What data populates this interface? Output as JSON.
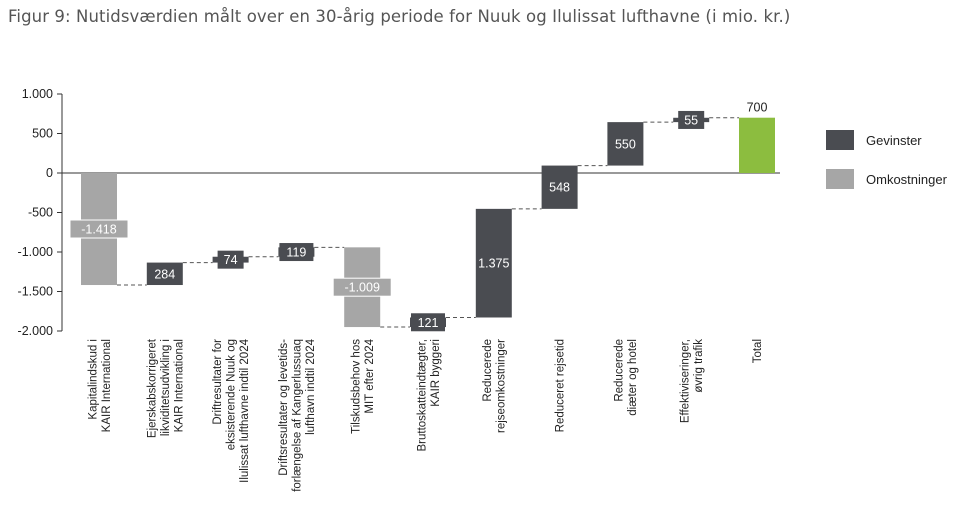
{
  "title": "Figur 9: Nutidsværdien målt over en 30-årig periode for Nuuk og Ilulissat lufthavne (i mio. kr.)",
  "chart_data": {
    "type": "waterfall",
    "title": "Figur 9: Nutidsværdien målt over en 30-årig periode for Nuuk og Ilulissat lufthavne (i mio. kr.)",
    "ylim": [
      -2000,
      1000
    ],
    "yticks": [
      1000,
      500,
      0,
      -500,
      -1000,
      -1500,
      -2000
    ],
    "ytick_labels": [
      "1.000",
      "500",
      "0",
      "-500",
      "-1.000",
      "-1.500",
      "-2.000"
    ],
    "grid": false,
    "legend_position": "right",
    "colors": {
      "Gevinster": "#4a4c51",
      "Omkostninger": "#a6a6a6",
      "Total": "#8cbd3f"
    },
    "legend": [
      {
        "name": "Gevinster",
        "color": "#4a4c51"
      },
      {
        "name": "Omkostninger",
        "color": "#a6a6a6"
      }
    ],
    "categories": [
      [
        "Kapitalindskud i",
        "KAIR International"
      ],
      [
        "Ejerskabskorrigeret",
        "likviditetsudvikling i",
        "KAIR International"
      ],
      [
        "Driftresultater for",
        "eksisterende Nuuk og",
        "Ilulissat lufthavne indtil 2024"
      ],
      [
        "Driftsresultater og levetids-",
        "forlængelse af Kangerlussuaq",
        "lufthavn indtil 2024"
      ],
      [
        "Tilskudsbehov hos",
        "MIT efter 2024"
      ],
      [
        "Bruttoskatteindtægter,",
        "KAIR byggeri"
      ],
      [
        "Reducerede",
        "rejseomkostninger"
      ],
      [
        "Reduceret rejsetid"
      ],
      [
        "Reducerede",
        "diæter og hotel"
      ],
      [
        "Effektiviseringer,",
        "øvrig trafik"
      ],
      [
        "Total"
      ]
    ],
    "values": [
      -1418,
      284,
      74,
      119,
      -1009,
      121,
      1375,
      548,
      550,
      55,
      700
    ],
    "data_labels": [
      "-1.418",
      "284",
      "74",
      "119",
      "-1.009",
      "121",
      "1.375",
      "548",
      "550",
      "55",
      "700"
    ],
    "kinds": [
      "Omkostninger",
      "Gevinster",
      "Gevinster",
      "Gevinster",
      "Omkostninger",
      "Gevinster",
      "Gevinster",
      "Gevinster",
      "Gevinster",
      "Gevinster",
      "Total"
    ]
  }
}
